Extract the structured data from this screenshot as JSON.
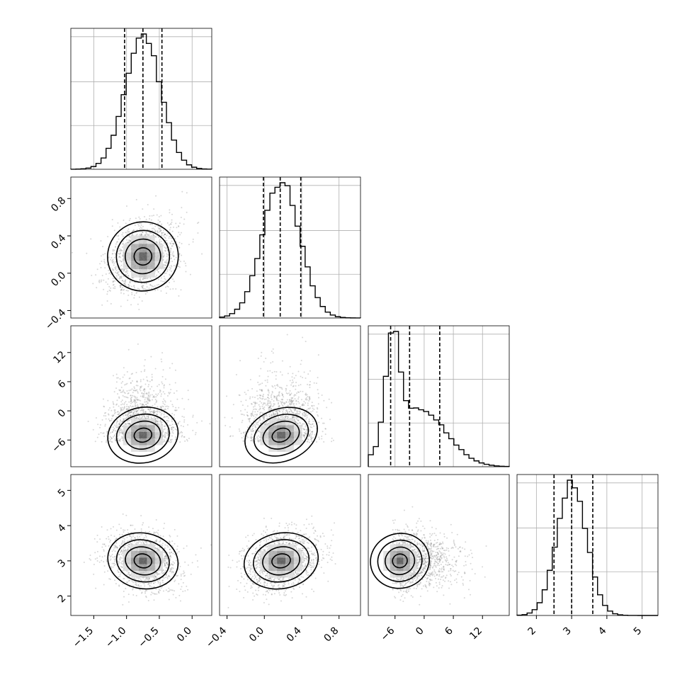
{
  "chart_data": {
    "type": "corner",
    "parameters": [
      "",
      "",
      "",
      ""
    ],
    "grid": true,
    "quantile_lines": "dashed",
    "colors": {
      "hist": "#000000",
      "contour": "#000000",
      "points": "#8c8c8c",
      "grid": "#b0b0b0"
    },
    "axes": [
      {
        "range": [
          -1.85,
          0.3
        ],
        "ticks": [
          -1.5,
          -1.0,
          -0.5,
          0.0
        ],
        "tick_labels": [
          "−1.5",
          "−1.0",
          "−0.5",
          "0.0"
        ],
        "center": [
          -0.75,
          0.27
        ],
        "quantiles": [
          -1.03,
          -0.75,
          -0.46
        ]
      },
      {
        "range": [
          -0.48,
          1.03
        ],
        "ticks": [
          -0.4,
          0.0,
          0.4,
          0.8
        ],
        "tick_labels": [
          "−0.4",
          "0.0",
          "0.4",
          "0.8"
        ],
        "center": [
          0.18,
          0.2
        ],
        "quantiles": [
          -0.01,
          0.17,
          0.39
        ]
      },
      {
        "range": [
          -11.5,
          17.5
        ],
        "ticks": [
          -6,
          0,
          6,
          12
        ],
        "tick_labels": [
          "−6",
          "0",
          "6",
          "12"
        ],
        "center": [
          -5.5,
          3.8
        ],
        "quantiles": [
          -6.9,
          -3.0,
          3.2
        ]
      },
      {
        "range": [
          1.45,
          5.45
        ],
        "ticks": [
          2,
          3,
          4,
          5
        ],
        "tick_labels": [
          "2",
          "3",
          "4",
          "5"
        ],
        "center": [
          3.0,
          0.42
        ],
        "quantiles": [
          2.5,
          3.0,
          3.6
        ]
      }
    ],
    "correlations": [
      {
        "i": 1,
        "j": 0,
        "rho": 0.3
      },
      {
        "i": 2,
        "j": 0,
        "rho": 0.25
      },
      {
        "i": 2,
        "j": 1,
        "rho": 0.45
      },
      {
        "i": 3,
        "j": 0,
        "rho": -0.25
      },
      {
        "i": 3,
        "j": 1,
        "rho": 0.25
      },
      {
        "i": 3,
        "j": 2,
        "rho": 0.3
      }
    ],
    "contour_levels": [
      0.5,
      1.0,
      1.5,
      2.0
    ]
  }
}
